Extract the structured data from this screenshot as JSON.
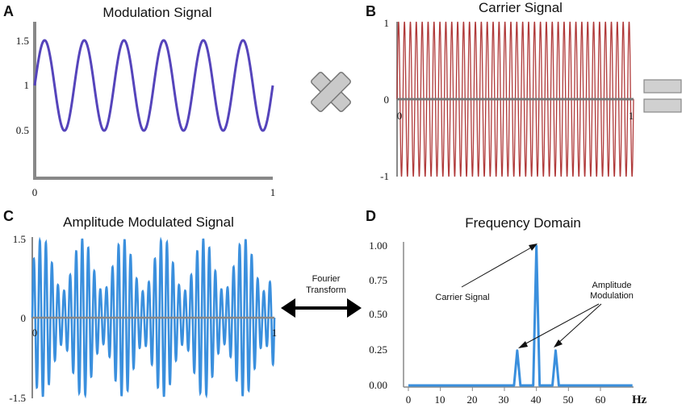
{
  "chart_data": [
    {
      "panel": "A",
      "type": "line",
      "title": "Modulation Signal",
      "color": "#5544bb",
      "x_ticks": [
        "0",
        "1"
      ],
      "y_ticks": [
        "0.5",
        "1",
        "1.5"
      ],
      "xlim": [
        0,
        1
      ],
      "ylim": [
        0,
        1.75
      ],
      "series": [
        {
          "function": "1 + 0.5*sin(2*pi*6*x)",
          "cycles": 6,
          "offset": 1,
          "amplitude": 0.5
        }
      ]
    },
    {
      "panel": "B",
      "type": "line",
      "title": "Carrier Signal",
      "color": "#b03a3a",
      "x_ticks": [
        "0",
        "1"
      ],
      "y_ticks": [
        "1",
        "0",
        "-1"
      ],
      "xlim": [
        0,
        1
      ],
      "ylim": [
        -1,
        1
      ],
      "series": [
        {
          "function": "sin(2*pi*40*x)",
          "cycles": 40,
          "amplitude": 1
        }
      ]
    },
    {
      "panel": "C",
      "type": "line",
      "title": "Amplitude Modulated Signal",
      "color": "#3a8fdd",
      "x_ticks": [
        "0",
        "1"
      ],
      "y_ticks": [
        "1.5",
        "0",
        "-1.5"
      ],
      "xlim": [
        0,
        1
      ],
      "ylim": [
        -1.5,
        1.5
      ],
      "series": [
        {
          "function": "(1 + 0.5*sin(2*pi*6*x)) * sin(2*pi*40*x)"
        }
      ]
    },
    {
      "panel": "D",
      "type": "line",
      "title": "Frequency Domain",
      "xlabel": "Hz",
      "color": "#3a8fdd",
      "x_ticks": [
        "0",
        "10",
        "20",
        "30",
        "40",
        "50",
        "60"
      ],
      "y_ticks": [
        "1.00",
        "0.75",
        "0.50",
        "0.25",
        "0.00"
      ],
      "xlim": [
        0,
        70
      ],
      "ylim": [
        0,
        1.0
      ],
      "series": [
        {
          "x": [
            0,
            33,
            34,
            35,
            39,
            40,
            41,
            45,
            46,
            47,
            70
          ],
          "values": [
            0,
            0,
            0.25,
            0,
            0,
            1.0,
            0,
            0,
            0.25,
            0,
            0
          ]
        }
      ],
      "annotations": [
        {
          "lines": [
            "Carrier Signal"
          ]
        },
        {
          "lines": [
            "Amplitude",
            "Modulation"
          ]
        }
      ]
    }
  ],
  "connectors": {
    "fourier_label": [
      "Fourier",
      "Transform"
    ]
  }
}
